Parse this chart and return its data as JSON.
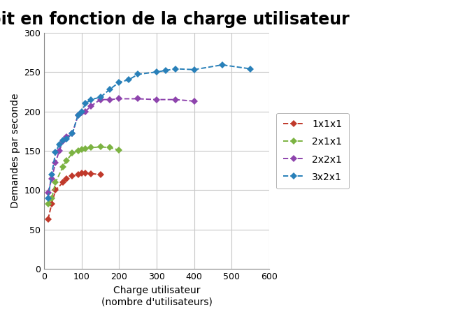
{
  "title": "Débit en fonction de la charge utilisateur",
  "xlabel": "Charge utilisateur\n(nombre d'utilisateurs)",
  "ylabel": "Demandes par seconde",
  "xlim": [
    0,
    600
  ],
  "ylim": [
    0,
    300
  ],
  "xticks": [
    0,
    100,
    200,
    300,
    400,
    500,
    600
  ],
  "yticks": [
    0,
    50,
    100,
    150,
    200,
    250,
    300
  ],
  "series": [
    {
      "label": "1x1x1",
      "color": "#c0392b",
      "x": [
        10,
        20,
        30,
        50,
        60,
        75,
        90,
        100,
        110,
        125,
        150
      ],
      "y": [
        63,
        83,
        100,
        110,
        115,
        118,
        120,
        122,
        122,
        121,
        120
      ]
    },
    {
      "label": "2x1x1",
      "color": "#7cb342",
      "x": [
        10,
        20,
        30,
        50,
        60,
        75,
        90,
        100,
        110,
        125,
        150,
        175,
        200
      ],
      "y": [
        83,
        90,
        110,
        130,
        138,
        147,
        150,
        152,
        153,
        154,
        155,
        154,
        151
      ]
    },
    {
      "label": "2x2x1",
      "color": "#8e44ad",
      "x": [
        10,
        20,
        30,
        40,
        50,
        60,
        75,
        90,
        100,
        110,
        125,
        150,
        175,
        200,
        250,
        300,
        350,
        400
      ],
      "y": [
        97,
        115,
        135,
        150,
        162,
        168,
        172,
        195,
        199,
        200,
        207,
        215,
        215,
        216,
        216,
        215,
        215,
        213
      ]
    },
    {
      "label": "3x2x1",
      "color": "#2980b9",
      "x": [
        10,
        20,
        30,
        40,
        50,
        60,
        75,
        90,
        100,
        110,
        125,
        150,
        175,
        200,
        225,
        250,
        300,
        325,
        350,
        400,
        475,
        550
      ],
      "y": [
        90,
        120,
        148,
        158,
        163,
        165,
        172,
        195,
        200,
        210,
        215,
        218,
        228,
        237,
        240,
        247,
        250,
        252,
        254,
        253,
        259,
        254
      ]
    }
  ],
  "background_color": "#ffffff",
  "grid_color": "#c8c8c8",
  "title_fontsize": 17,
  "axis_label_fontsize": 10,
  "tick_fontsize": 9,
  "legend_fontsize": 10
}
